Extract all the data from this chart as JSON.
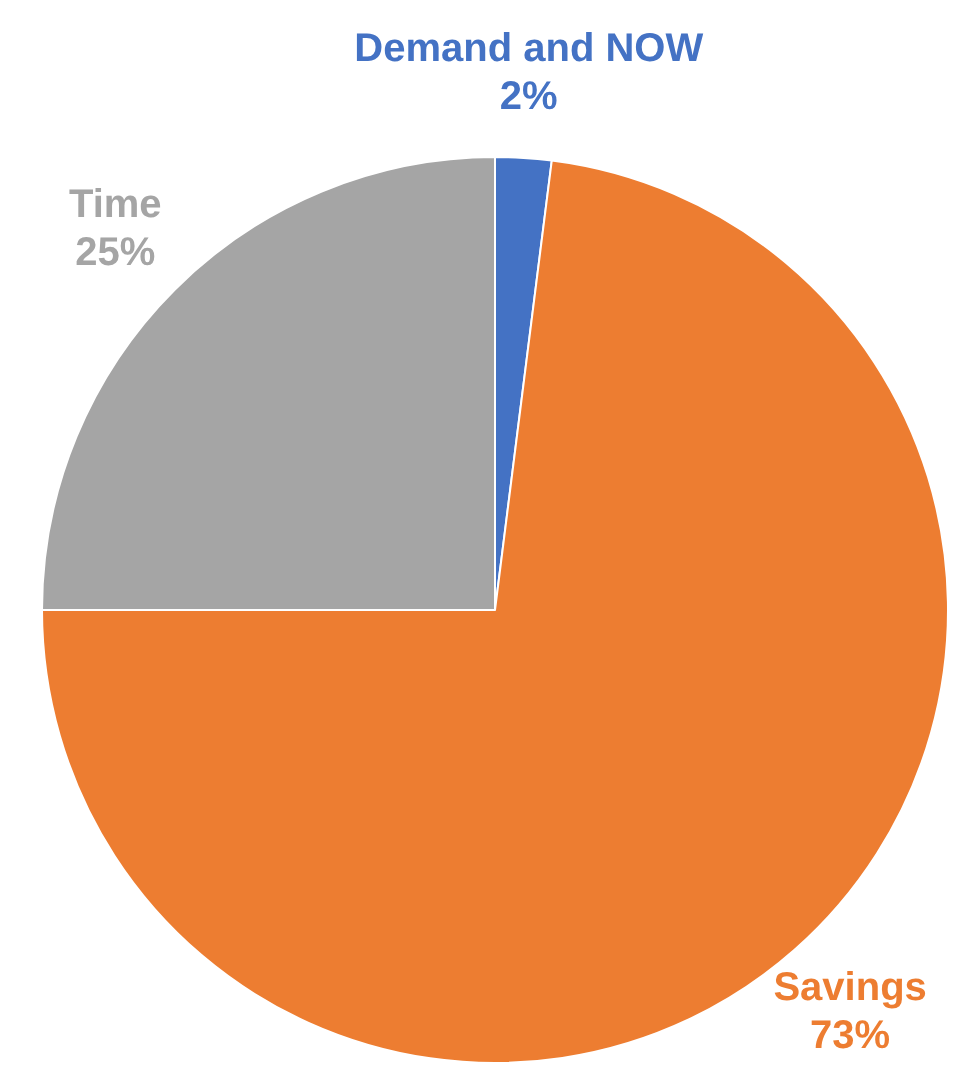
{
  "chart_data": {
    "type": "pie",
    "categories": [
      "Demand and NOW",
      "Savings",
      "Time"
    ],
    "values": [
      2,
      73,
      25
    ],
    "colors": [
      "#4472c4",
      "#ed7d31",
      "#a5a5a5"
    ],
    "value_labels": [
      "2%",
      "73%",
      "25%"
    ],
    "legend": false
  }
}
